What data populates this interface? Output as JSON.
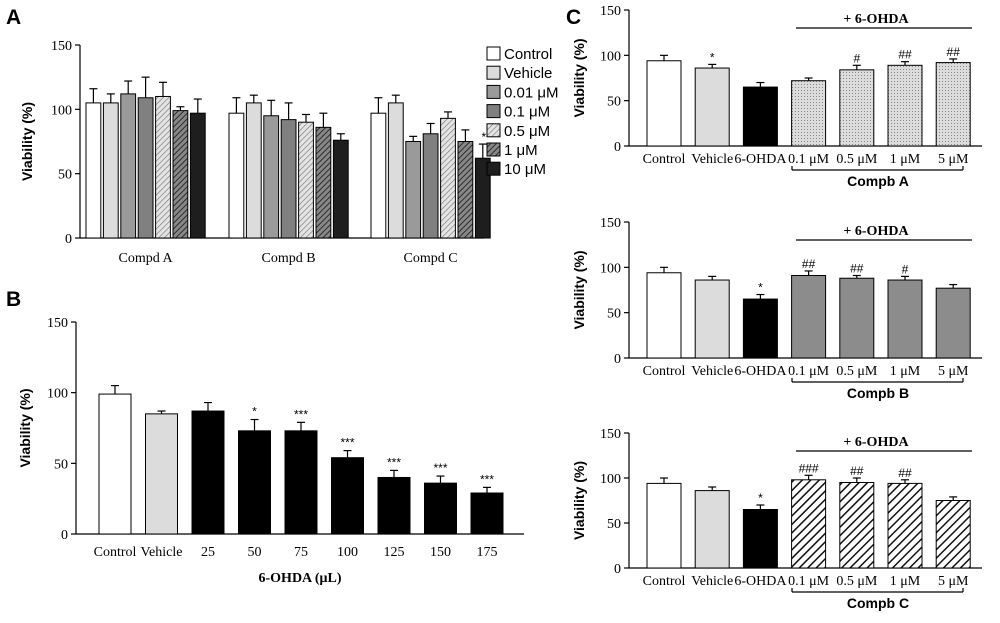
{
  "colors": {
    "control": "#ffffff",
    "vehicle": "#dcdcdc",
    "black": "#000000",
    "c001": "#9a9a9a",
    "c01": "#808080",
    "c05": "#c8c8c8",
    "c1": "#555555",
    "c10": "#1e1e1e",
    "gray_bar": "#8c8c8c",
    "dots_bar": "#d4d4d4"
  },
  "chart_data": [
    {
      "panel": "A",
      "type": "bar",
      "ylabel": "Viability (%)",
      "ylim": [
        0,
        150
      ],
      "yticks": [
        "0",
        "50",
        "100",
        "150"
      ],
      "categories": [
        "Compd A",
        "Compd B",
        "Compd C"
      ],
      "legend": [
        "Control",
        "Vehicle",
        "0.01 μM",
        "0.1 μM",
        "0.5 μM",
        "1 μM",
        "10 μM"
      ],
      "legend_position": "right",
      "series": [
        {
          "name": "Control",
          "values": [
            105,
            97,
            97
          ],
          "errors": [
            11,
            12,
            12
          ]
        },
        {
          "name": "Vehicle",
          "values": [
            105,
            105,
            105
          ],
          "errors": [
            7,
            6,
            6
          ]
        },
        {
          "name": "0.01 μM",
          "values": [
            112,
            95,
            75
          ],
          "errors": [
            10,
            12,
            4
          ]
        },
        {
          "name": "0.1 μM",
          "values": [
            109,
            92,
            81
          ],
          "errors": [
            16,
            13,
            8
          ]
        },
        {
          "name": "0.5 μM",
          "values": [
            110,
            90,
            93
          ],
          "errors": [
            11,
            6,
            5
          ]
        },
        {
          "name": "1 μM",
          "values": [
            99,
            86,
            75
          ],
          "errors": [
            3,
            11,
            9
          ]
        },
        {
          "name": "10 μM",
          "values": [
            97,
            76,
            62
          ],
          "errors": [
            11,
            5,
            11
          ]
        }
      ],
      "annotations": [
        {
          "group": 2,
          "series": 6,
          "text": "*"
        }
      ]
    },
    {
      "panel": "B",
      "type": "bar",
      "ylabel": "Viability (%)",
      "xlabel": "6-OHDA (μL)",
      "ylim": [
        0,
        150
      ],
      "yticks": [
        "0",
        "50",
        "100",
        "150"
      ],
      "categories": [
        "Control",
        "Vehicle",
        "25",
        "50",
        "75",
        "100",
        "125",
        "150",
        "175"
      ],
      "values": [
        99,
        85,
        87,
        73,
        73,
        54,
        40,
        36,
        29
      ],
      "errors": [
        6,
        2,
        6,
        8,
        6,
        5,
        5,
        5,
        4
      ],
      "annotations": [
        "",
        "",
        "",
        "*",
        "***",
        "***",
        "***",
        "***",
        "***"
      ]
    },
    {
      "panel": "C",
      "type": "bar",
      "ylabel": "Viability (%)",
      "ylim": [
        0,
        150
      ],
      "yticks": [
        "0",
        "50",
        "100",
        "150"
      ],
      "bracket_label": "+ 6-OHDA",
      "categories": [
        "Control",
        "Vehicle",
        "6-OHDA",
        "0.1 μM",
        "0.5 μM",
        "1 μM",
        "5 μM"
      ],
      "group_label": "Compb A",
      "values": [
        94,
        86,
        65,
        72,
        84,
        89,
        92
      ],
      "errors": [
        6,
        4,
        5,
        3,
        5,
        4,
        4
      ],
      "annotations": [
        "",
        "*",
        "",
        "",
        "#",
        "##",
        "##"
      ]
    },
    {
      "panel": "C2",
      "type": "bar",
      "ylabel": "Viability (%)",
      "ylim": [
        0,
        150
      ],
      "yticks": [
        "0",
        "50",
        "100",
        "150"
      ],
      "bracket_label": "+ 6-OHDA",
      "categories": [
        "Control",
        "Vehicle",
        "6-OHDA",
        "0.1 μM",
        "0.5 μM",
        "1 μM",
        "5 μM"
      ],
      "group_label": "Compb B",
      "values": [
        94,
        86,
        65,
        91,
        88,
        86,
        77
      ],
      "errors": [
        6,
        4,
        5,
        5,
        3,
        4,
        4
      ],
      "annotations": [
        "",
        "",
        "*",
        "##",
        "##",
        "#",
        ""
      ]
    },
    {
      "panel": "C3",
      "type": "bar",
      "ylabel": "Viability (%)",
      "ylim": [
        0,
        150
      ],
      "yticks": [
        "0",
        "50",
        "100",
        "150"
      ],
      "bracket_label": "+ 6-OHDA",
      "categories": [
        "Control",
        "Vehicle",
        "6-OHDA",
        "0.1 μM",
        "0.5 μM",
        "1 μM",
        "5 μM"
      ],
      "group_label": "Compb C",
      "values": [
        94,
        86,
        65,
        98,
        95,
        94,
        75
      ],
      "errors": [
        6,
        4,
        5,
        5,
        5,
        4,
        4
      ],
      "annotations": [
        "",
        "",
        "*",
        "###",
        "##",
        "##",
        ""
      ]
    }
  ],
  "labels": {
    "a": "A",
    "b": "B",
    "c": "C"
  }
}
